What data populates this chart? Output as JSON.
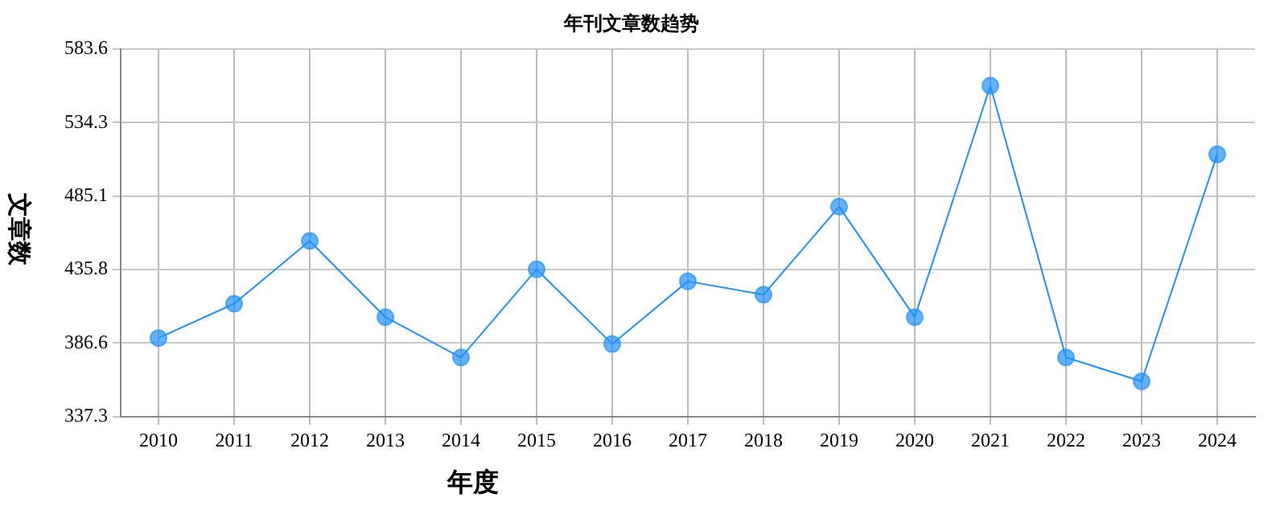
{
  "chart_data": {
    "type": "line",
    "title": "年刊文章数趋势",
    "xlabel": "年度",
    "ylabel": "文章数",
    "categories": [
      "2010",
      "2011",
      "2012",
      "2013",
      "2014",
      "2015",
      "2016",
      "2017",
      "2018",
      "2019",
      "2020",
      "2021",
      "2022",
      "2023",
      "2024"
    ],
    "series": [
      {
        "color": "#1e90ff",
        "values": [
          390,
          413,
          455,
          404,
          377,
          436,
          386,
          428,
          419,
          478,
          404,
          559,
          377,
          361,
          513
        ]
      }
    ],
    "ylim": [
      337.3,
      583.6
    ],
    "yticks": [
      337.3,
      386.6,
      435.8,
      485.1,
      534.3,
      583.6
    ],
    "grid": true,
    "marker": "circle",
    "line_style": "solid",
    "legend": false
  }
}
